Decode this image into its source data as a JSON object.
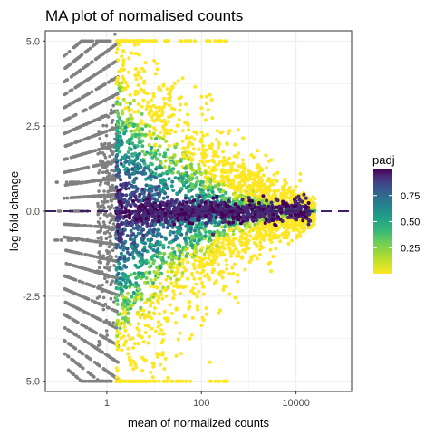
{
  "chart_data": {
    "type": "scatter",
    "title": "MA plot of normalised counts",
    "xlabel": "mean of normalized counts",
    "ylabel": "log fold change",
    "x_scale": "log10",
    "xlim": [
      0.05,
      150000
    ],
    "ylim": [
      -5.3,
      5.3
    ],
    "x_ticks": [
      1,
      100,
      10000
    ],
    "x_tick_labels": [
      "1",
      "100",
      "10000"
    ],
    "y_ticks": [
      -5,
      -2.5,
      0,
      2.5,
      5
    ],
    "y_tick_labels": [
      "-5.0",
      "-2.5",
      "0.0",
      "2.5",
      "5.0"
    ],
    "grid": true,
    "reference_line": {
      "y": 0,
      "style": "dashed",
      "color": "#3f1f66"
    },
    "legend": {
      "title": "padj",
      "placement": "right",
      "ticks": [
        0.25,
        0.5,
        0.75
      ],
      "tick_labels": [
        "0.25",
        "0.50",
        "0.75"
      ],
      "range": [
        0,
        1
      ]
    },
    "colors": {
      "na_points": "#808080",
      "scale": [
        "#FDE725",
        "#B4DE2C",
        "#6DCD59",
        "#35B779",
        "#1F9E89",
        "#26828E",
        "#31688E",
        "#3E4A89",
        "#482878",
        "#440154"
      ],
      "panel_border": "#333333",
      "grid_major": "#ebebeb"
    }
  }
}
